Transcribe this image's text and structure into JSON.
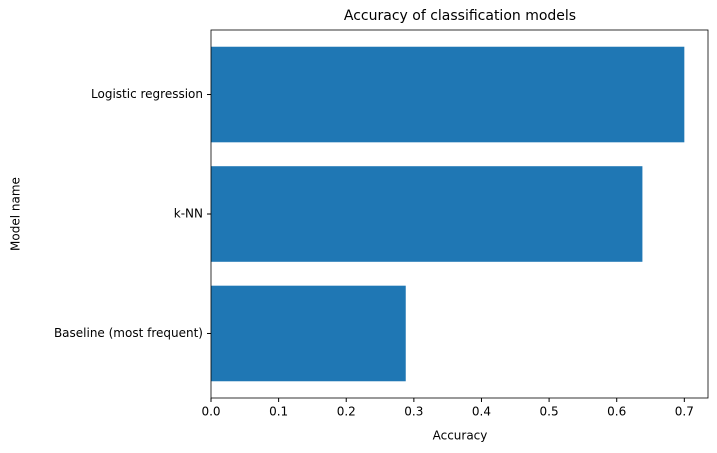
{
  "chart_data": {
    "type": "barh",
    "title": "Accuracy of classification models",
    "x_label": "Accuracy",
    "y_label": "Model name",
    "categories": [
      "Baseline (most frequent)",
      "k-NN",
      "Logistic regression"
    ],
    "values": [
      0.288,
      0.638,
      0.7
    ],
    "color": "#1f77b4",
    "xlim": [
      0,
      0.735
    ],
    "xticks": [
      {
        "value": 0,
        "label": "0.0"
      },
      0.1,
      0.2,
      0.3,
      0.4,
      0.5,
      0.6,
      0.7
    ],
    "grid": false
  }
}
